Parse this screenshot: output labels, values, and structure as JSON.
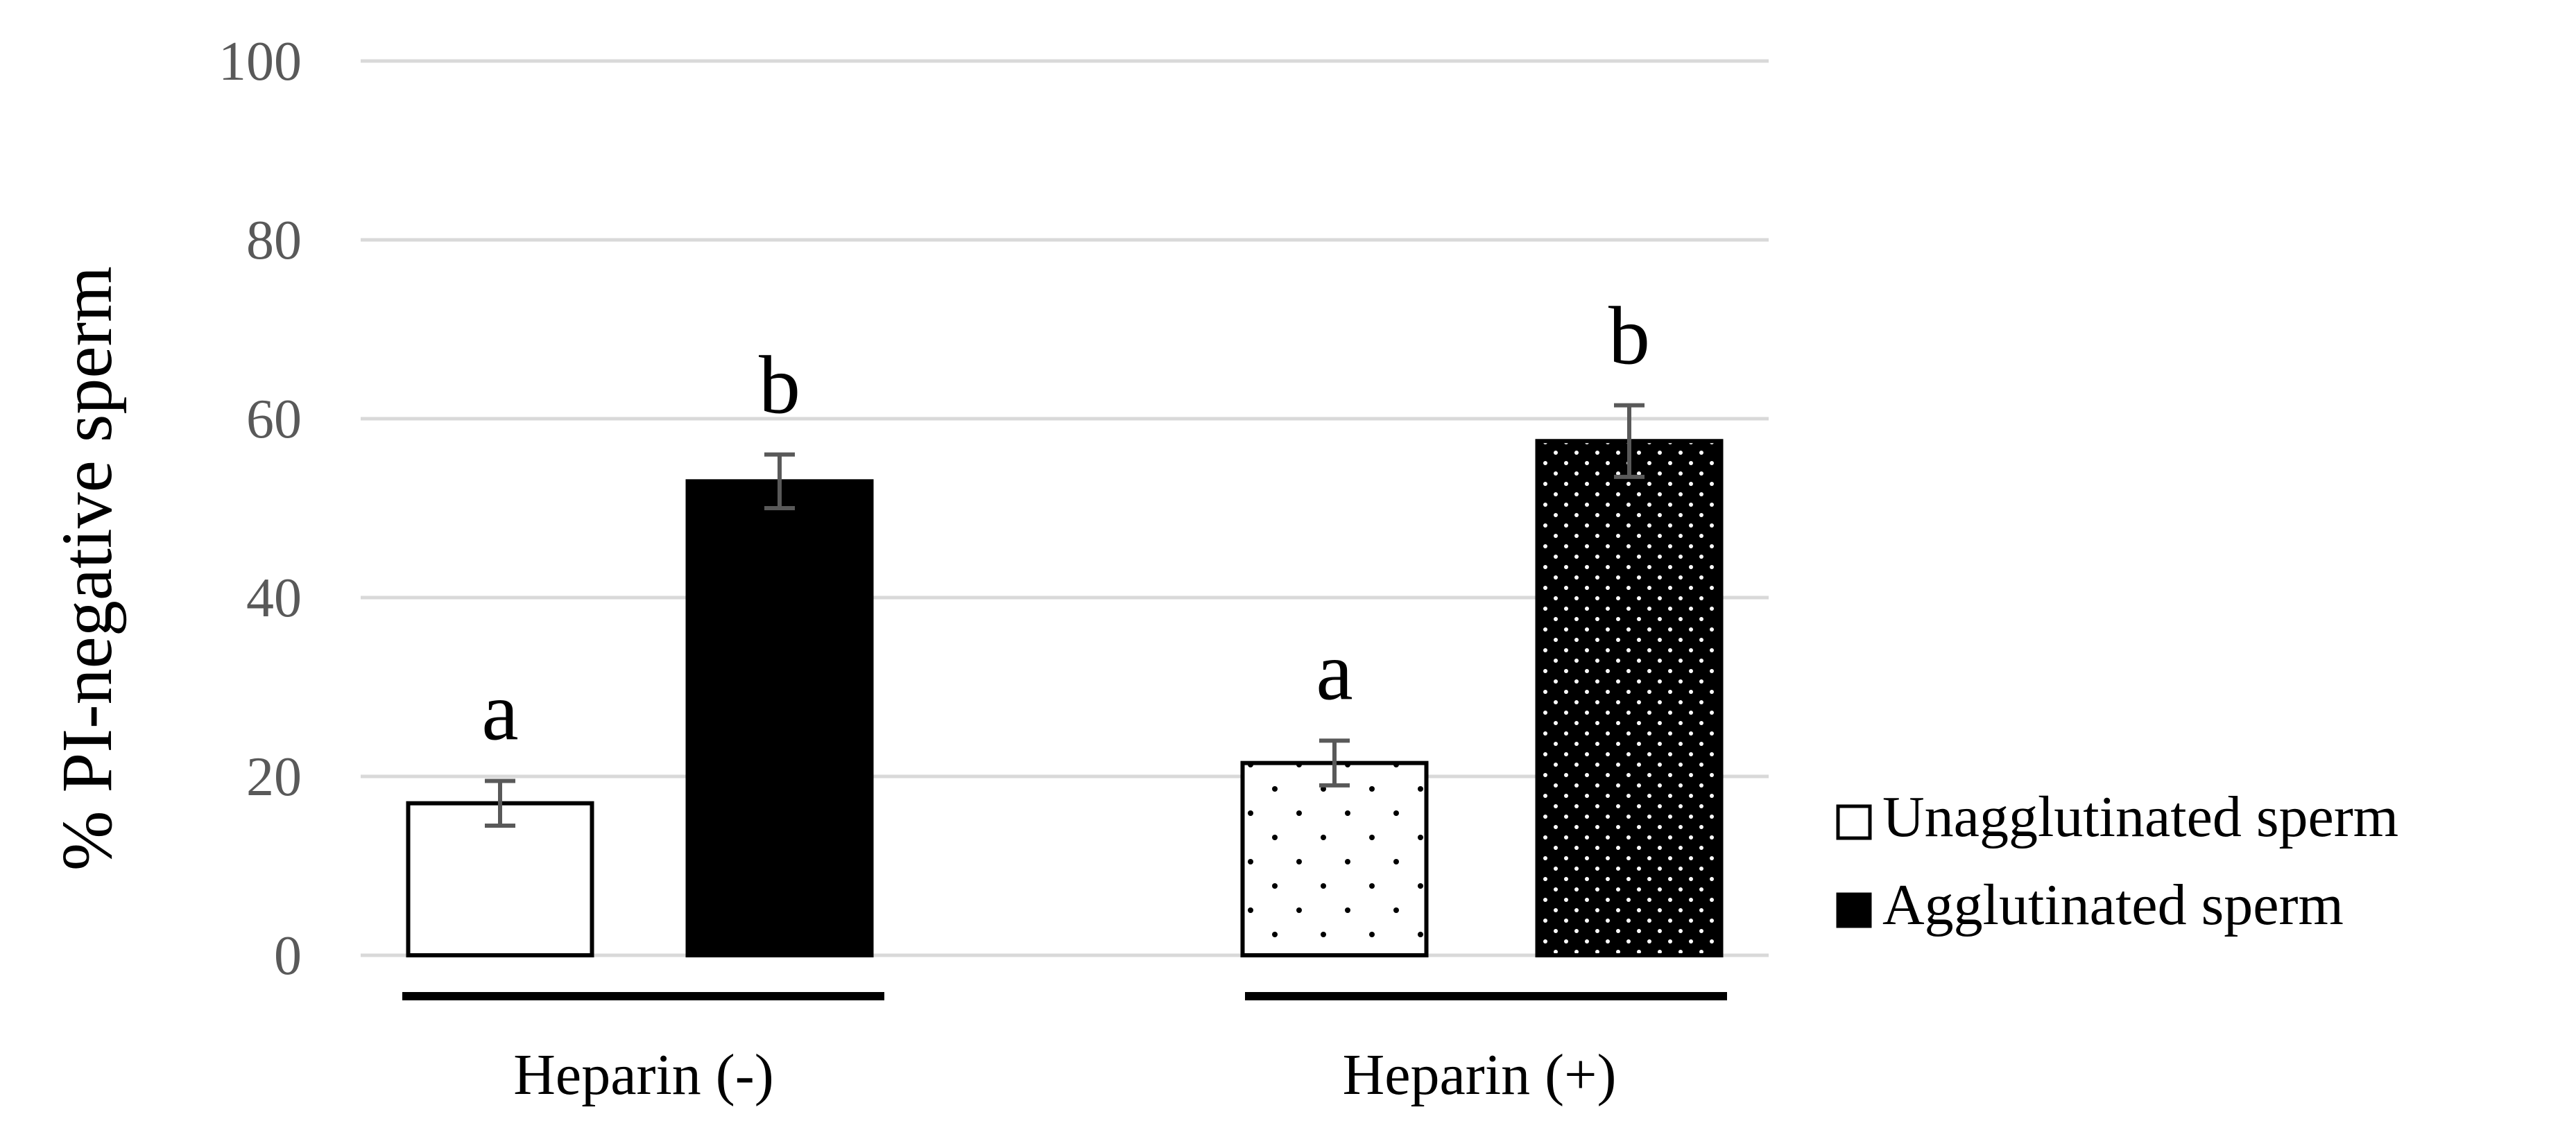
{
  "chart_data": {
    "type": "bar",
    "ylabel": "% PI-negative sperm",
    "ylim": [
      0,
      100
    ],
    "yticks": [
      "0",
      "20",
      "40",
      "60",
      "80",
      "100"
    ],
    "grid": true,
    "categories": [
      "Heparin (-)",
      "Heparin (+)"
    ],
    "series": [
      {
        "name": "Unagglutinated sperm",
        "values": [
          17,
          21.5
        ],
        "errors": [
          2.5,
          2.5
        ],
        "letters": [
          "a",
          "a"
        ]
      },
      {
        "name": "Agglutinated sperm",
        "values": [
          53,
          57.5
        ],
        "errors": [
          3,
          4
        ],
        "letters": [
          "b",
          "b"
        ]
      }
    ],
    "legend_position": "bottom-right",
    "colors": {
      "grid": "#d9d9d9",
      "tick_text": "#595959",
      "bar_dark": "#000000",
      "bar_light": "#ffffff",
      "error": "#595959"
    }
  }
}
